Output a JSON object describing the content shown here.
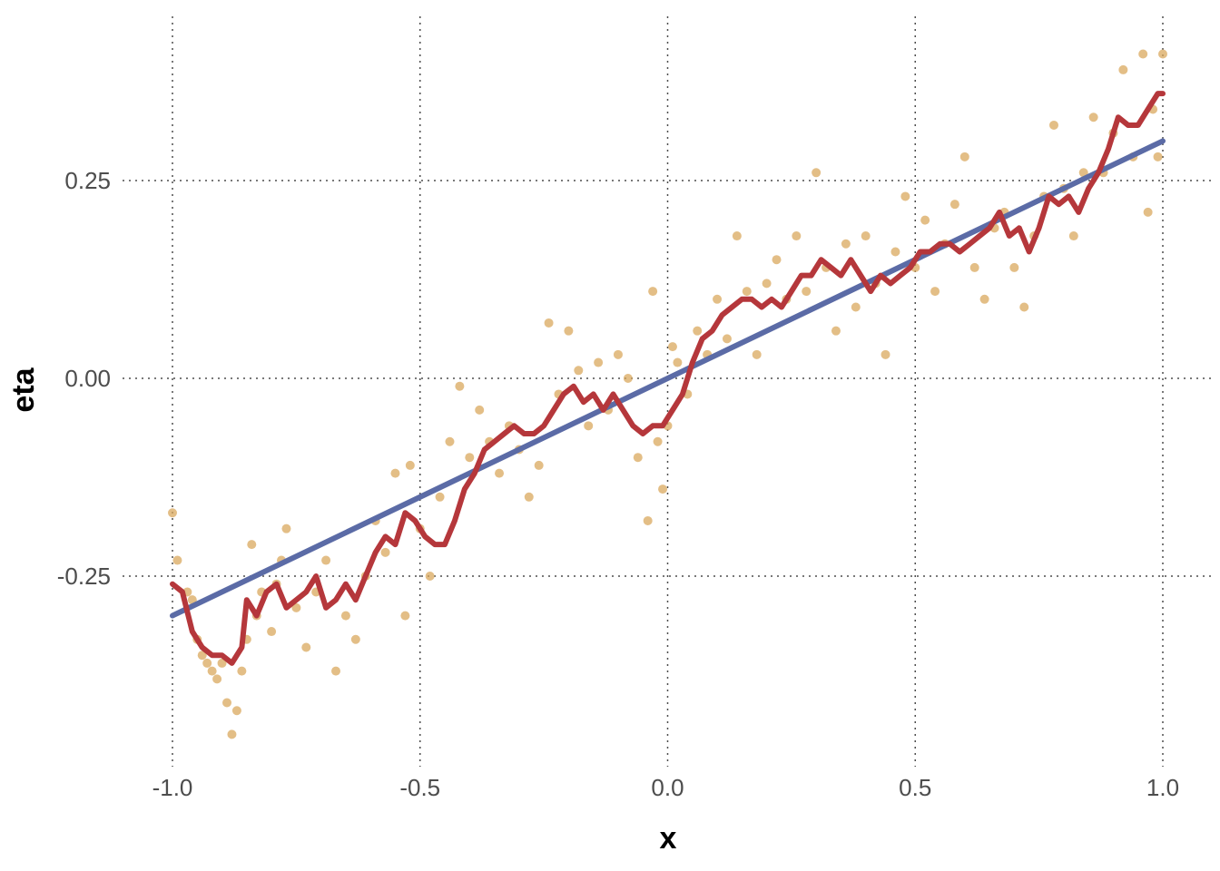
{
  "chart_data": {
    "type": "scatter",
    "title": "",
    "xlabel": "x",
    "ylabel": "eta",
    "xlim": [
      -1.0,
      1.0
    ],
    "ylim": [
      -0.49,
      0.46
    ],
    "x_ticks": [
      -1.0,
      -0.5,
      0.0,
      0.5,
      1.0
    ],
    "x_tick_labels": [
      "-1.0",
      "-0.5",
      "0.0",
      "0.5",
      "1.0"
    ],
    "y_ticks": [
      -0.25,
      0.0,
      0.25
    ],
    "y_tick_labels": [
      "-0.25",
      "0.00",
      "0.25"
    ],
    "grid": true,
    "legend": "none",
    "colors": {
      "points": "#d9a85e",
      "trend_line": "#5b6ba6",
      "walk_line": "#b5373b",
      "grid": "#4d4d4d"
    },
    "series": [
      {
        "kind": "points",
        "points": [
          [
            -1.0,
            -0.17
          ],
          [
            -0.99,
            -0.23
          ],
          [
            -0.97,
            -0.27
          ],
          [
            -0.96,
            -0.28
          ],
          [
            -0.95,
            -0.33
          ],
          [
            -0.94,
            -0.35
          ],
          [
            -0.93,
            -0.36
          ],
          [
            -0.92,
            -0.37
          ],
          [
            -0.91,
            -0.38
          ],
          [
            -0.9,
            -0.36
          ],
          [
            -0.89,
            -0.41
          ],
          [
            -0.88,
            -0.45
          ],
          [
            -0.87,
            -0.42
          ],
          [
            -0.86,
            -0.37
          ],
          [
            -0.85,
            -0.33
          ],
          [
            -0.84,
            -0.21
          ],
          [
            -0.83,
            -0.3
          ],
          [
            -0.82,
            -0.27
          ],
          [
            -0.8,
            -0.32
          ],
          [
            -0.79,
            -0.26
          ],
          [
            -0.78,
            -0.23
          ],
          [
            -0.77,
            -0.19
          ],
          [
            -0.75,
            -0.29
          ],
          [
            -0.73,
            -0.34
          ],
          [
            -0.71,
            -0.27
          ],
          [
            -0.69,
            -0.23
          ],
          [
            -0.67,
            -0.37
          ],
          [
            -0.65,
            -0.3
          ],
          [
            -0.63,
            -0.33
          ],
          [
            -0.61,
            -0.25
          ],
          [
            -0.59,
            -0.18
          ],
          [
            -0.57,
            -0.22
          ],
          [
            -0.55,
            -0.12
          ],
          [
            -0.53,
            -0.3
          ],
          [
            -0.52,
            -0.11
          ],
          [
            -0.5,
            -0.19
          ],
          [
            -0.48,
            -0.25
          ],
          [
            -0.46,
            -0.15
          ],
          [
            -0.44,
            -0.08
          ],
          [
            -0.42,
            -0.01
          ],
          [
            -0.4,
            -0.1
          ],
          [
            -0.38,
            -0.04
          ],
          [
            -0.36,
            -0.08
          ],
          [
            -0.34,
            -0.12
          ],
          [
            -0.32,
            -0.06
          ],
          [
            -0.3,
            -0.09
          ],
          [
            -0.28,
            -0.15
          ],
          [
            -0.26,
            -0.11
          ],
          [
            -0.24,
            0.07
          ],
          [
            -0.22,
            -0.02
          ],
          [
            -0.2,
            0.06
          ],
          [
            -0.18,
            0.01
          ],
          [
            -0.16,
            -0.06
          ],
          [
            -0.14,
            0.02
          ],
          [
            -0.12,
            -0.04
          ],
          [
            -0.1,
            0.03
          ],
          [
            -0.08,
            0.0
          ],
          [
            -0.06,
            -0.1
          ],
          [
            -0.04,
            -0.18
          ],
          [
            -0.03,
            0.11
          ],
          [
            -0.02,
            -0.08
          ],
          [
            -0.01,
            -0.14
          ],
          [
            0.0,
            -0.06
          ],
          [
            0.01,
            0.04
          ],
          [
            0.02,
            0.02
          ],
          [
            0.04,
            -0.02
          ],
          [
            0.06,
            0.06
          ],
          [
            0.08,
            0.03
          ],
          [
            0.1,
            0.1
          ],
          [
            0.12,
            0.05
          ],
          [
            0.14,
            0.18
          ],
          [
            0.16,
            0.11
          ],
          [
            0.18,
            0.03
          ],
          [
            0.2,
            0.12
          ],
          [
            0.22,
            0.15
          ],
          [
            0.24,
            0.1
          ],
          [
            0.26,
            0.18
          ],
          [
            0.28,
            0.11
          ],
          [
            0.3,
            0.26
          ],
          [
            0.32,
            0.14
          ],
          [
            0.34,
            0.06
          ],
          [
            0.36,
            0.17
          ],
          [
            0.38,
            0.09
          ],
          [
            0.4,
            0.18
          ],
          [
            0.42,
            0.12
          ],
          [
            0.44,
            0.03
          ],
          [
            0.46,
            0.16
          ],
          [
            0.48,
            0.23
          ],
          [
            0.5,
            0.14
          ],
          [
            0.52,
            0.2
          ],
          [
            0.54,
            0.11
          ],
          [
            0.56,
            0.17
          ],
          [
            0.58,
            0.22
          ],
          [
            0.6,
            0.28
          ],
          [
            0.62,
            0.14
          ],
          [
            0.64,
            0.1
          ],
          [
            0.66,
            0.19
          ],
          [
            0.68,
            0.21
          ],
          [
            0.7,
            0.14
          ],
          [
            0.72,
            0.09
          ],
          [
            0.74,
            0.18
          ],
          [
            0.76,
            0.23
          ],
          [
            0.78,
            0.32
          ],
          [
            0.8,
            0.24
          ],
          [
            0.82,
            0.18
          ],
          [
            0.84,
            0.26
          ],
          [
            0.86,
            0.33
          ],
          [
            0.88,
            0.26
          ],
          [
            0.9,
            0.31
          ],
          [
            0.92,
            0.39
          ],
          [
            0.94,
            0.28
          ],
          [
            0.96,
            0.41
          ],
          [
            0.97,
            0.21
          ],
          [
            0.98,
            0.34
          ],
          [
            0.99,
            0.28
          ],
          [
            1.0,
            0.41
          ]
        ]
      },
      {
        "kind": "line",
        "points": [
          [
            -1.0,
            -0.3
          ],
          [
            1.0,
            0.3
          ]
        ]
      },
      {
        "kind": "line",
        "points": [
          [
            -1.0,
            -0.26
          ],
          [
            -0.98,
            -0.27
          ],
          [
            -0.96,
            -0.32
          ],
          [
            -0.94,
            -0.34
          ],
          [
            -0.92,
            -0.35
          ],
          [
            -0.9,
            -0.35
          ],
          [
            -0.88,
            -0.36
          ],
          [
            -0.86,
            -0.34
          ],
          [
            -0.85,
            -0.28
          ],
          [
            -0.83,
            -0.3
          ],
          [
            -0.81,
            -0.27
          ],
          [
            -0.79,
            -0.26
          ],
          [
            -0.77,
            -0.29
          ],
          [
            -0.75,
            -0.28
          ],
          [
            -0.73,
            -0.27
          ],
          [
            -0.71,
            -0.25
          ],
          [
            -0.69,
            -0.29
          ],
          [
            -0.67,
            -0.28
          ],
          [
            -0.65,
            -0.26
          ],
          [
            -0.63,
            -0.28
          ],
          [
            -0.61,
            -0.25
          ],
          [
            -0.59,
            -0.22
          ],
          [
            -0.57,
            -0.2
          ],
          [
            -0.55,
            -0.21
          ],
          [
            -0.53,
            -0.17
          ],
          [
            -0.51,
            -0.18
          ],
          [
            -0.49,
            -0.2
          ],
          [
            -0.47,
            -0.21
          ],
          [
            -0.45,
            -0.21
          ],
          [
            -0.43,
            -0.18
          ],
          [
            -0.41,
            -0.14
          ],
          [
            -0.39,
            -0.12
          ],
          [
            -0.37,
            -0.09
          ],
          [
            -0.35,
            -0.08
          ],
          [
            -0.33,
            -0.07
          ],
          [
            -0.31,
            -0.06
          ],
          [
            -0.29,
            -0.07
          ],
          [
            -0.27,
            -0.07
          ],
          [
            -0.25,
            -0.06
          ],
          [
            -0.23,
            -0.04
          ],
          [
            -0.21,
            -0.02
          ],
          [
            -0.19,
            -0.01
          ],
          [
            -0.17,
            -0.03
          ],
          [
            -0.15,
            -0.02
          ],
          [
            -0.13,
            -0.04
          ],
          [
            -0.11,
            -0.02
          ],
          [
            -0.09,
            -0.04
          ],
          [
            -0.07,
            -0.06
          ],
          [
            -0.05,
            -0.07
          ],
          [
            -0.03,
            -0.06
          ],
          [
            -0.01,
            -0.06
          ],
          [
            0.01,
            -0.04
          ],
          [
            0.03,
            -0.02
          ],
          [
            0.05,
            0.02
          ],
          [
            0.07,
            0.05
          ],
          [
            0.09,
            0.06
          ],
          [
            0.11,
            0.08
          ],
          [
            0.13,
            0.09
          ],
          [
            0.15,
            0.1
          ],
          [
            0.17,
            0.1
          ],
          [
            0.19,
            0.09
          ],
          [
            0.21,
            0.1
          ],
          [
            0.23,
            0.09
          ],
          [
            0.25,
            0.11
          ],
          [
            0.27,
            0.13
          ],
          [
            0.29,
            0.13
          ],
          [
            0.31,
            0.15
          ],
          [
            0.33,
            0.14
          ],
          [
            0.35,
            0.13
          ],
          [
            0.37,
            0.15
          ],
          [
            0.39,
            0.13
          ],
          [
            0.41,
            0.11
          ],
          [
            0.43,
            0.13
          ],
          [
            0.45,
            0.12
          ],
          [
            0.47,
            0.13
          ],
          [
            0.49,
            0.14
          ],
          [
            0.51,
            0.16
          ],
          [
            0.53,
            0.16
          ],
          [
            0.55,
            0.17
          ],
          [
            0.57,
            0.17
          ],
          [
            0.59,
            0.16
          ],
          [
            0.61,
            0.17
          ],
          [
            0.63,
            0.18
          ],
          [
            0.65,
            0.19
          ],
          [
            0.67,
            0.21
          ],
          [
            0.69,
            0.18
          ],
          [
            0.71,
            0.19
          ],
          [
            0.73,
            0.16
          ],
          [
            0.75,
            0.19
          ],
          [
            0.77,
            0.23
          ],
          [
            0.79,
            0.22
          ],
          [
            0.81,
            0.23
          ],
          [
            0.83,
            0.21
          ],
          [
            0.85,
            0.24
          ],
          [
            0.87,
            0.26
          ],
          [
            0.89,
            0.29
          ],
          [
            0.91,
            0.33
          ],
          [
            0.93,
            0.32
          ],
          [
            0.95,
            0.32
          ],
          [
            0.97,
            0.34
          ],
          [
            0.99,
            0.36
          ],
          [
            1.0,
            0.36
          ]
        ]
      }
    ]
  }
}
